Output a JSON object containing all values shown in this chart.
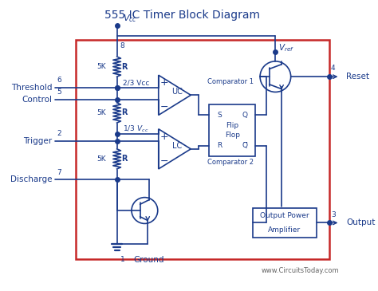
{
  "title": "555 IC Timer Block Diagram",
  "watermark": "www.CircuitsToday.com",
  "bg_color": "#ffffff",
  "line_color": "#1a3a8a",
  "box_color": "#c62828",
  "text_color": "#1a3a8a",
  "resistor_label": "5K",
  "resistor_sym": "R",
  "vcc_label": "V_{cc}",
  "vref_label": "V_{ref}",
  "ground_label": "Ground",
  "comp1_label": "Comparator 1",
  "comp2_label": "Comparator 2",
  "uc_label": "UC",
  "lc_label": "LC",
  "amp_label1": "Output Power",
  "amp_label2": "Amplifier",
  "node23_label": "2/3 Vcc",
  "node13_label": "1/3 V_{cc}",
  "pin8": "8",
  "pin6": "6",
  "pin5": "5",
  "pin2": "2",
  "pin7": "7",
  "pin4": "4",
  "pin3": "3",
  "pin1": "1",
  "label_threshold": "Threshold",
  "label_control": "Control",
  "label_trigger": "Trigger",
  "label_discharge": "Discharge",
  "label_reset": "Reset",
  "label_output": "Output",
  "ff_s": "S",
  "ff_q": "Q",
  "ff_flip": "Flip",
  "ff_flop": "Flop",
  "ff_r": "R"
}
